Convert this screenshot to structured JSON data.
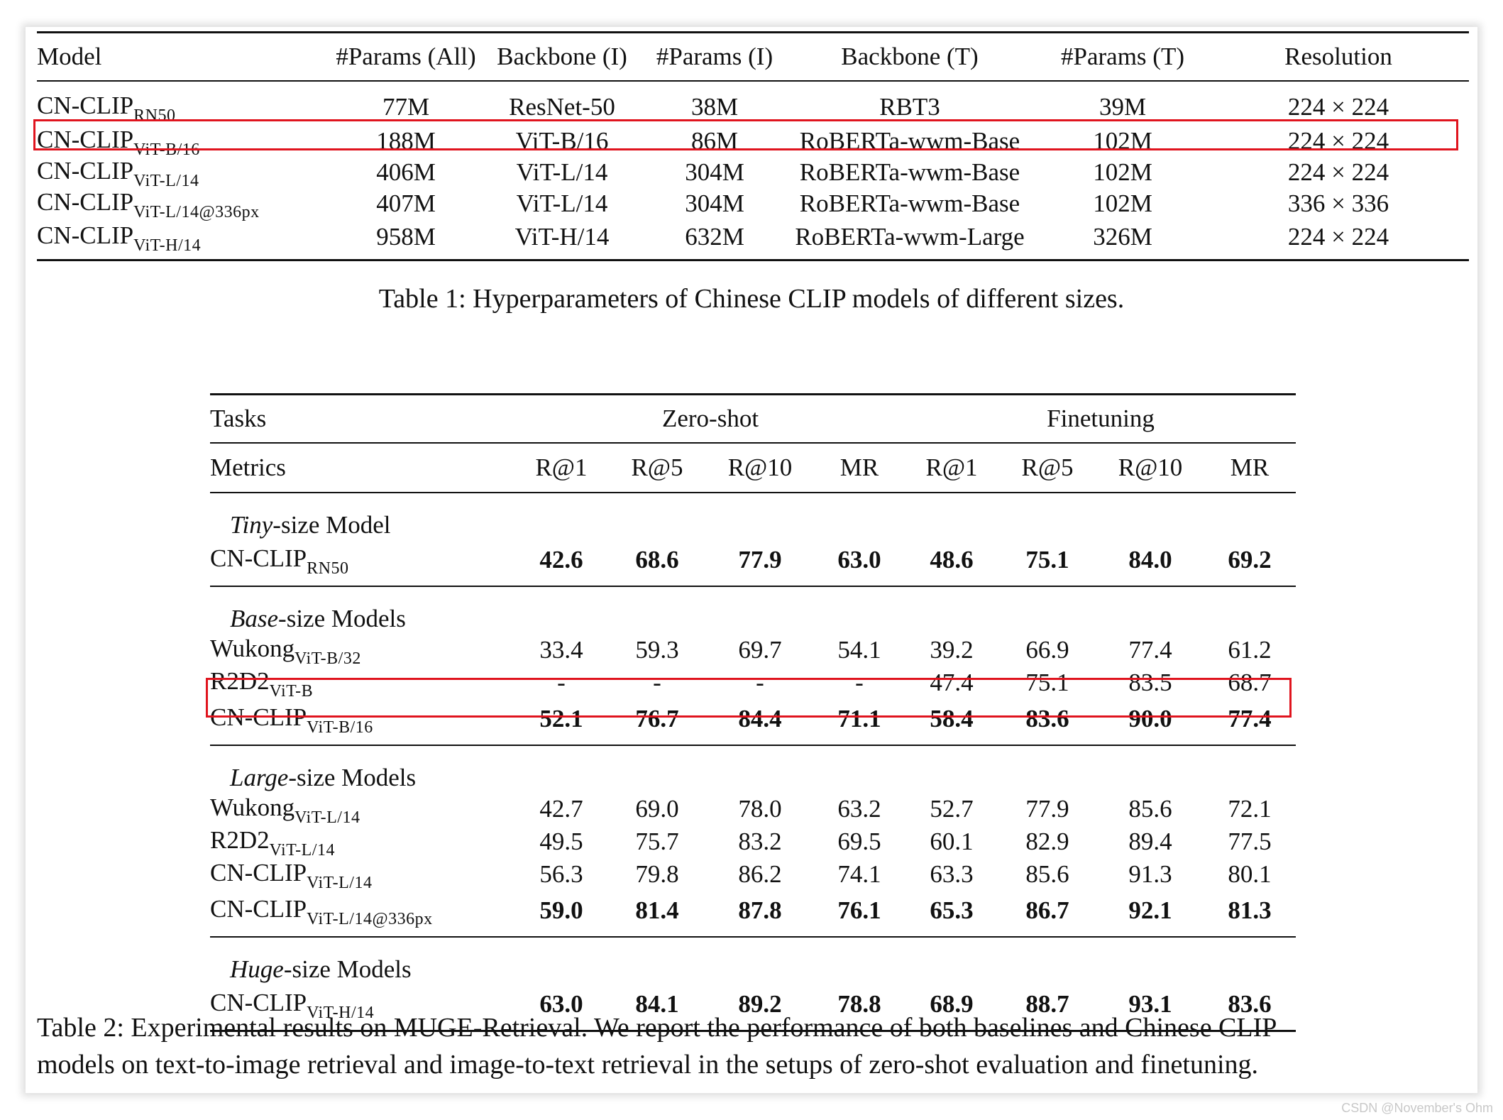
{
  "table1": {
    "headers": [
      "Model",
      "#Params (All)",
      "Backbone (I)",
      "#Params (I)",
      "Backbone (T)",
      "#Params (T)",
      "Resolution"
    ],
    "rows": [
      {
        "model": "CN-CLIP",
        "sub": "RN50",
        "params_all": "77M",
        "backbone_i": "ResNet-50",
        "params_i": "38M",
        "backbone_t": "RBT3",
        "params_t": "39M",
        "resolution": "224 × 224"
      },
      {
        "model": "CN-CLIP",
        "sub": "ViT-B/16",
        "params_all": "188M",
        "backbone_i": "ViT-B/16",
        "params_i": "86M",
        "backbone_t": "RoBERTa-wwm-Base",
        "params_t": "102M",
        "resolution": "224 × 224"
      },
      {
        "model": "CN-CLIP",
        "sub": "ViT-L/14",
        "params_all": "406M",
        "backbone_i": "ViT-L/14",
        "params_i": "304M",
        "backbone_t": "RoBERTa-wwm-Base",
        "params_t": "102M",
        "resolution": "224 × 224"
      },
      {
        "model": "CN-CLIP",
        "sub": "ViT-L/14@336px",
        "params_all": "407M",
        "backbone_i": "ViT-L/14",
        "params_i": "304M",
        "backbone_t": "RoBERTa-wwm-Base",
        "params_t": "102M",
        "resolution": "336 × 336"
      },
      {
        "model": "CN-CLIP",
        "sub": "ViT-H/14",
        "params_all": "958M",
        "backbone_i": "ViT-H/14",
        "params_i": "632M",
        "backbone_t": "RoBERTa-wwm-Large",
        "params_t": "326M",
        "resolution": "224 × 224"
      }
    ],
    "caption": "Table 1: Hyperparameters of Chinese CLIP models of different sizes."
  },
  "table2": {
    "tasks_label": "Tasks",
    "zero_shot": "Zero-shot",
    "finetuning": "Finetuning",
    "metrics_label": "Metrics",
    "metrics": [
      "R@1",
      "R@5",
      "R@10",
      "MR",
      "R@1",
      "R@5",
      "R@10",
      "MR"
    ],
    "groups": {
      "tiny": {
        "ital": "Tiny",
        "rest": "-size Model"
      },
      "base": {
        "ital": "Base",
        "rest": "-size Models"
      },
      "large": {
        "ital": "Large",
        "rest": "-size Models"
      },
      "huge": {
        "ital": "Huge",
        "rest": "-size Models"
      }
    },
    "rows": {
      "tiny_cn": {
        "name": "CN-CLIP",
        "sub": "RN50",
        "v": [
          "42.6",
          "68.6",
          "77.9",
          "63.0",
          "48.6",
          "75.1",
          "84.0",
          "69.2"
        ]
      },
      "base_wukong": {
        "name": "Wukong",
        "sub": "ViT-B/32",
        "v": [
          "33.4",
          "59.3",
          "69.7",
          "54.1",
          "39.2",
          "66.9",
          "77.4",
          "61.2"
        ]
      },
      "base_r2d2": {
        "name": "R2D2",
        "sub": "ViT-B",
        "v": [
          "-",
          "-",
          "-",
          "-",
          "47.4",
          "75.1",
          "83.5",
          "68.7"
        ]
      },
      "base_cn": {
        "name": "CN-CLIP",
        "sub": "ViT-B/16",
        "v": [
          "52.1",
          "76.7",
          "84.4",
          "71.1",
          "58.4",
          "83.6",
          "90.0",
          "77.4"
        ]
      },
      "large_wukong": {
        "name": "Wukong",
        "sub": "ViT-L/14",
        "v": [
          "42.7",
          "69.0",
          "78.0",
          "63.2",
          "52.7",
          "77.9",
          "85.6",
          "72.1"
        ]
      },
      "large_r2d2": {
        "name": "R2D2",
        "sub": "ViT-L/14",
        "v": [
          "49.5",
          "75.7",
          "83.2",
          "69.5",
          "60.1",
          "82.9",
          "89.4",
          "77.5"
        ]
      },
      "large_cn": {
        "name": "CN-CLIP",
        "sub": "ViT-L/14",
        "v": [
          "56.3",
          "79.8",
          "86.2",
          "74.1",
          "63.3",
          "85.6",
          "91.3",
          "80.1"
        ]
      },
      "large_cn336": {
        "name": "CN-CLIP",
        "sub": "ViT-L/14@336px",
        "v": [
          "59.0",
          "81.4",
          "87.8",
          "76.1",
          "65.3",
          "86.7",
          "92.1",
          "81.3"
        ]
      },
      "huge_cn": {
        "name": "CN-CLIP",
        "sub": "ViT-H/14",
        "v": [
          "63.0",
          "84.1",
          "89.2",
          "78.8",
          "68.9",
          "88.7",
          "93.1",
          "83.6"
        ]
      }
    },
    "caption_line1": "Table 2: Experimental results on MUGE-Retrieval. We report the performance of both baselines and Chinese CLIP",
    "caption_line2": "models on text-to-image retrieval and image-to-text retrieval in the setups of zero-shot evaluation and finetuning."
  },
  "colors": {
    "highlight": "#e0141e"
  },
  "watermark": "CSDN @November's Ohm"
}
